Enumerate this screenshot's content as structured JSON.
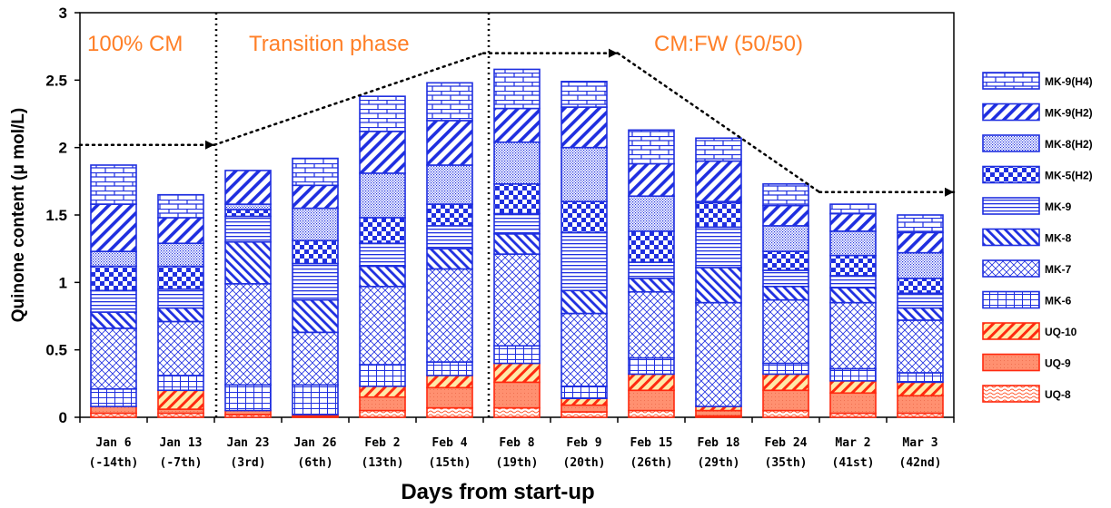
{
  "chart_data": {
    "type": "bar",
    "stacked": true,
    "xlabel": "Days from start-up",
    "ylabel": "Quinone content (μ mol/L)",
    "ylim": [
      0,
      3
    ],
    "yticks": [
      "0",
      "0.5",
      "1",
      "1.5",
      "2",
      "2.5",
      "3"
    ],
    "categories": [
      {
        "date": "Jan 6",
        "day": "(-14th)"
      },
      {
        "date": "Jan 13",
        "day": "(-7th)"
      },
      {
        "date": "Jan 23",
        "day": "(3rd)"
      },
      {
        "date": "Jan 26",
        "day": "(6th)"
      },
      {
        "date": "Feb 2",
        "day": "(13th)"
      },
      {
        "date": "Feb 4",
        "day": "(15th)"
      },
      {
        "date": "Feb 8",
        "day": "(19th)"
      },
      {
        "date": "Feb 9",
        "day": "(20th)"
      },
      {
        "date": "Feb 15",
        "day": "(26th)"
      },
      {
        "date": "Feb 18",
        "day": "(29th)"
      },
      {
        "date": "Feb 24",
        "day": "(35th)"
      },
      {
        "date": "Mar 2",
        "day": "(41st)"
      },
      {
        "date": "Mar 3",
        "day": "(42nd)"
      }
    ],
    "series": [
      {
        "name": "UQ-8",
        "pattern": "wave-red",
        "values": [
          0.03,
          0.03,
          0.02,
          0.01,
          0.05,
          0.07,
          0.07,
          0.04,
          0.05,
          0.01,
          0.05,
          0.03,
          0.03
        ]
      },
      {
        "name": "UQ-9",
        "pattern": "fill-salmon",
        "values": [
          0.05,
          0.03,
          0.03,
          0.01,
          0.1,
          0.15,
          0.19,
          0.05,
          0.15,
          0.04,
          0.15,
          0.15,
          0.13
        ]
      },
      {
        "name": "UQ-10",
        "pattern": "diag-red",
        "values": [
          0.0,
          0.14,
          0.0,
          0.0,
          0.08,
          0.09,
          0.14,
          0.05,
          0.12,
          0.03,
          0.12,
          0.09,
          0.1
        ]
      },
      {
        "name": "MK-6",
        "pattern": "grid-blue",
        "values": [
          0.13,
          0.11,
          0.19,
          0.22,
          0.16,
          0.1,
          0.13,
          0.09,
          0.12,
          0.0,
          0.08,
          0.09,
          0.07
        ]
      },
      {
        "name": "MK-7",
        "pattern": "crosshatch-blue",
        "values": [
          0.45,
          0.4,
          0.75,
          0.39,
          0.58,
          0.69,
          0.68,
          0.54,
          0.49,
          0.77,
          0.47,
          0.49,
          0.39
        ]
      },
      {
        "name": "MK-8",
        "pattern": "back-diag-blue",
        "values": [
          0.12,
          0.1,
          0.31,
          0.24,
          0.15,
          0.15,
          0.15,
          0.17,
          0.1,
          0.26,
          0.1,
          0.11,
          0.09
        ]
      },
      {
        "name": "MK-9",
        "pattern": "hlines-blue",
        "values": [
          0.16,
          0.14,
          0.19,
          0.27,
          0.17,
          0.17,
          0.15,
          0.43,
          0.12,
          0.3,
          0.12,
          0.09,
          0.11
        ]
      },
      {
        "name": "MK-5(H2)",
        "pattern": "checker-blue",
        "values": [
          0.18,
          0.17,
          0.05,
          0.17,
          0.19,
          0.16,
          0.22,
          0.23,
          0.23,
          0.18,
          0.14,
          0.15,
          0.11
        ]
      },
      {
        "name": "MK-8(H2)",
        "pattern": "dots-blue",
        "values": [
          0.11,
          0.17,
          0.04,
          0.24,
          0.33,
          0.29,
          0.31,
          0.4,
          0.26,
          0.01,
          0.19,
          0.18,
          0.19
        ]
      },
      {
        "name": "MK-9(H2)",
        "pattern": "diag-blue",
        "values": [
          0.35,
          0.19,
          0.25,
          0.17,
          0.31,
          0.33,
          0.25,
          0.3,
          0.24,
          0.3,
          0.15,
          0.13,
          0.15
        ]
      },
      {
        "name": "MK-9(H4)",
        "pattern": "brick-blue",
        "values": [
          0.29,
          0.17,
          0.0,
          0.2,
          0.26,
          0.28,
          0.29,
          0.19,
          0.25,
          0.17,
          0.16,
          0.07,
          0.13
        ]
      }
    ],
    "phases": [
      "100% CM",
      "Transition phase",
      "CM:FW (50/50)"
    ],
    "trend_line": [
      {
        "x": -0.5,
        "y": 2.02
      },
      {
        "x": 1.5,
        "y": 2.02
      },
      {
        "x": 5.5,
        "y": 2.7
      },
      {
        "x": 7.5,
        "y": 2.7
      },
      {
        "x": 10.5,
        "y": 1.67
      },
      {
        "x": 12.5,
        "y": 1.67
      }
    ],
    "colors": {
      "blue": "#1f2fe0",
      "red": "#ff2a10",
      "salmon": "#ff9070",
      "phase_text": "#ff7f27"
    },
    "legend_placement": "right",
    "grid": false
  }
}
